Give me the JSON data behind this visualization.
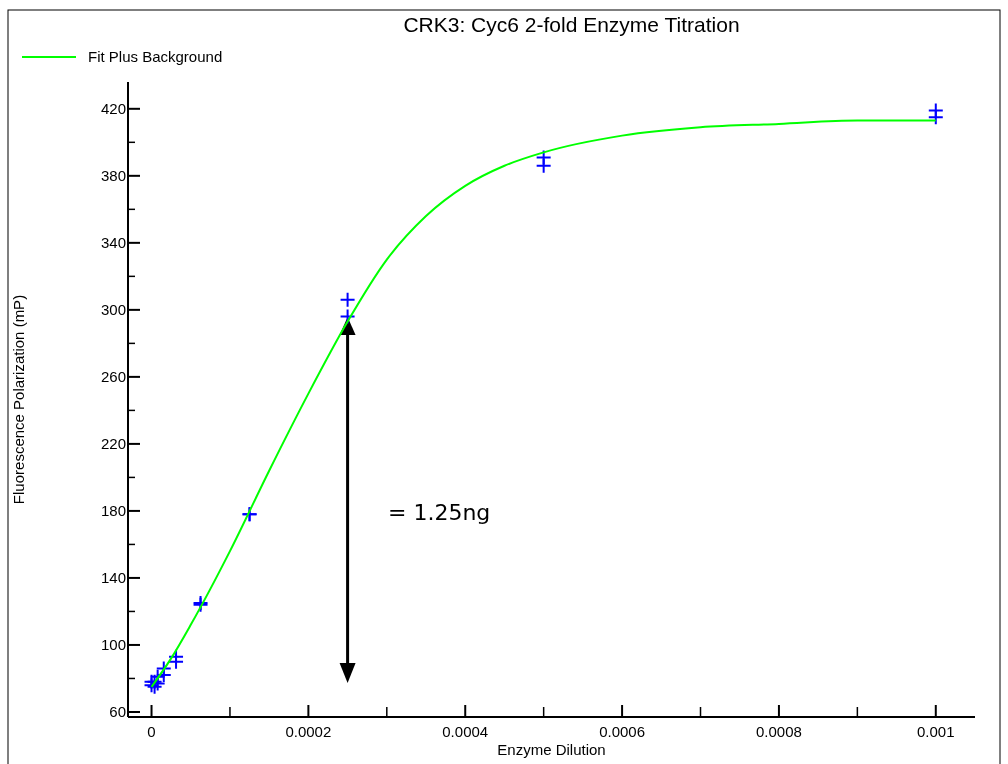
{
  "chart_data": {
    "type": "scatter",
    "title": "CRK3: Cyc6 2-fold Enzyme Titration",
    "xlabel": "Enzyme Dilution",
    "ylabel": "Fluorescence Polarization (mP)",
    "xlim": [
      -3e-05,
      0.00105
    ],
    "xticks": [
      0,
      0.0002,
      0.0004,
      0.0006,
      0.0008,
      0.001
    ],
    "ylim": [
      57,
      436
    ],
    "yticks": [
      60,
      100,
      140,
      180,
      220,
      260,
      300,
      340,
      380,
      420
    ],
    "grid": false,
    "legend": "top left",
    "marker": "cross",
    "annotations": [
      "= 1.25ng"
    ],
    "series": [
      {
        "color": "#0000ff",
        "x": [
          0.001,
          0.001,
          0.0005,
          0.0005,
          0.00025,
          0.00025,
          0.000125,
          0.000125,
          6.25e-05,
          6.25e-05,
          3.125e-05,
          3.125e-05,
          1.56e-05,
          1.56e-05,
          7.8e-06,
          7.8e-06,
          3.9e-06,
          3.9e-06,
          0,
          0
        ],
        "values": [
          419,
          415,
          391,
          386,
          306,
          296,
          178,
          178,
          125,
          124,
          93,
          90,
          86,
          82,
          81,
          77,
          78,
          75,
          78,
          76
        ]
      },
      {
        "type": "line",
        "name": "Fit Plus Background",
        "color": "#00ff00",
        "line_style": "solid",
        "marker": "none",
        "x": [
          0,
          2.5e-05,
          5e-05,
          0.0001,
          0.00015,
          0.0002,
          0.00025,
          0.0003,
          0.00035,
          0.0004,
          0.00045,
          0.0005,
          0.0006,
          0.0007,
          0.0008,
          0.0009,
          0.001
        ],
        "values": [
          75,
          92,
          112,
          156,
          204,
          250,
          293,
          330,
          356,
          374,
          386,
          394,
          404,
          409,
          411,
          413,
          413
        ]
      }
    ]
  }
}
